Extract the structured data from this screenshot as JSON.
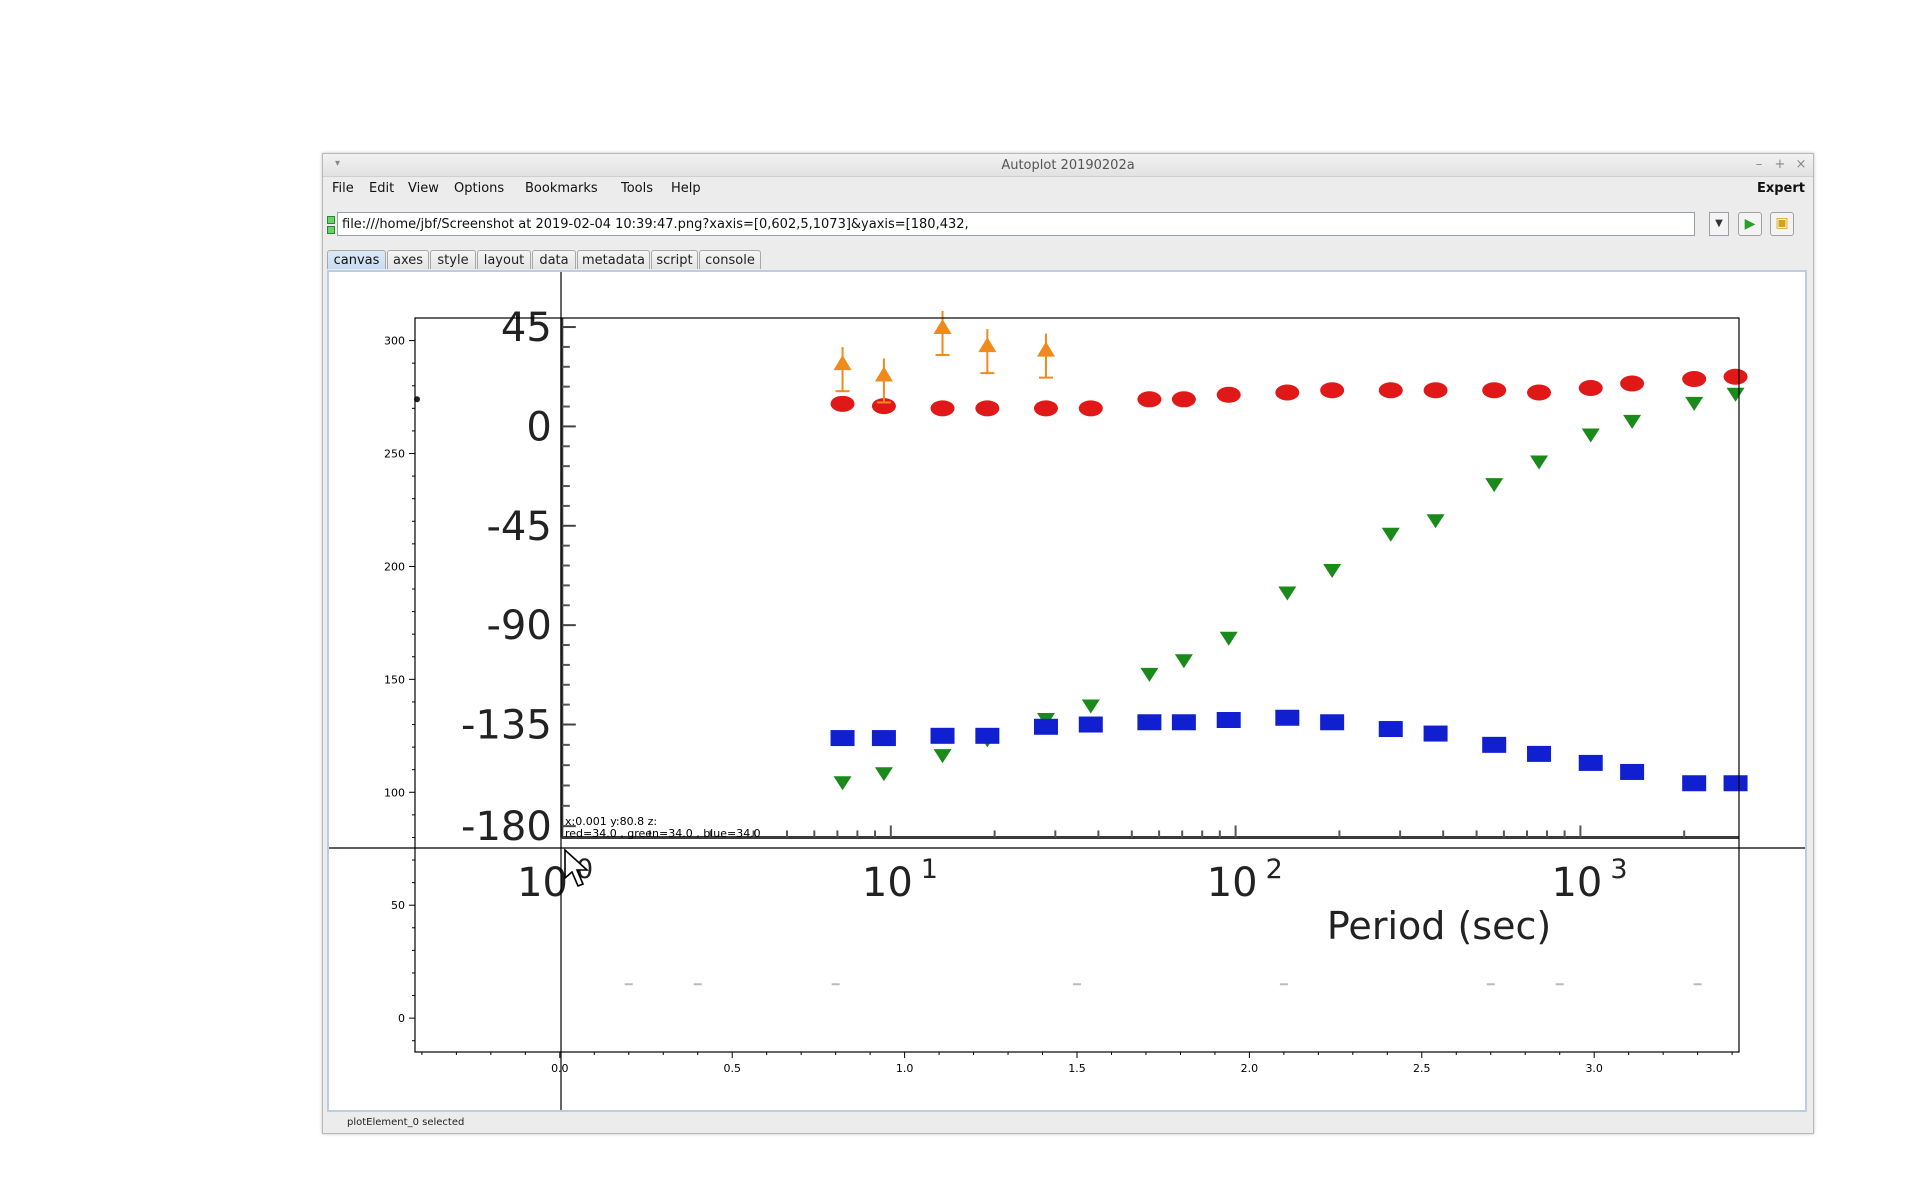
{
  "window": {
    "title": "Autoplot 20190202a",
    "controls": [
      "–",
      "+",
      "×"
    ]
  },
  "menu": {
    "items": [
      "File",
      "Edit",
      "View",
      "Options",
      "Bookmarks",
      "Tools",
      "Help"
    ],
    "expert_label": "Expert"
  },
  "url": {
    "value": "file:///home/jbf/Screenshot at 2019-02-04 10:39:47.png?xaxis=[0,602,5,1073]&yaxis=[180,432,"
  },
  "tabs": [
    "canvas",
    "axes",
    "style",
    "layout",
    "data",
    "metadata",
    "script",
    "console"
  ],
  "active_tab": "canvas",
  "status": {
    "text": "plotElement_0 selected"
  },
  "readout": {
    "line1": "x:0.001  y:80.8  z:",
    "line2": "red=34.0 , green=34.0 , blue=34.0"
  },
  "chart_data": {
    "type": "image",
    "x_ticks": [
      "0.0",
      "0.5",
      "1.0",
      "1.5",
      "2.0",
      "2.5",
      "3.0"
    ],
    "y_ticks": [
      "0",
      "50",
      "100",
      "150",
      "200",
      "250",
      "300"
    ],
    "xlim": [
      -0.42,
      3.42
    ],
    "ylim": [
      -15,
      310
    ],
    "grid": false,
    "embedded_image": {
      "y_labels": [
        "45",
        "0",
        "-45",
        "-90",
        "-135",
        "-180"
      ],
      "x_labels": [
        {
          "base": "10",
          "exp": "0"
        },
        {
          "base": "10",
          "exp": "1"
        },
        {
          "base": "10",
          "exp": "2"
        },
        {
          "base": "10",
          "exp": "3"
        }
      ],
      "xlabel": "Period (sec)",
      "series": [
        {
          "color": "#e01818",
          "marker": "circle",
          "points": [
            [
              0.82,
              272
            ],
            [
              0.94,
              271
            ],
            [
              1.11,
              270
            ],
            [
              1.24,
              270
            ],
            [
              1.41,
              270
            ],
            [
              1.54,
              270
            ],
            [
              1.71,
              274
            ],
            [
              1.81,
              274
            ],
            [
              1.94,
              276
            ],
            [
              2.11,
              277
            ],
            [
              2.24,
              278
            ],
            [
              2.41,
              278
            ],
            [
              2.54,
              278
            ],
            [
              2.71,
              278
            ],
            [
              2.84,
              277
            ],
            [
              2.99,
              279
            ],
            [
              3.11,
              281
            ],
            [
              3.29,
              283
            ],
            [
              3.41,
              284
            ]
          ]
        },
        {
          "color": "#1a8a1a",
          "marker": "triangle-down",
          "points": [
            [
              0.82,
              104
            ],
            [
              0.94,
              108
            ],
            [
              1.11,
              116
            ],
            [
              1.24,
              123
            ],
            [
              1.41,
              132
            ],
            [
              1.54,
              138
            ],
            [
              1.71,
              152
            ],
            [
              1.81,
              158
            ],
            [
              1.94,
              168
            ],
            [
              2.11,
              188
            ],
            [
              2.24,
              198
            ],
            [
              2.41,
              214
            ],
            [
              2.54,
              220
            ],
            [
              2.71,
              236
            ],
            [
              2.84,
              246
            ],
            [
              2.99,
              258
            ],
            [
              3.11,
              264
            ],
            [
              3.29,
              272
            ],
            [
              3.41,
              276
            ]
          ]
        },
        {
          "color": "#1020d0",
          "marker": "square",
          "points": [
            [
              0.82,
              124
            ],
            [
              0.94,
              124
            ],
            [
              1.11,
              125
            ],
            [
              1.24,
              125
            ],
            [
              1.41,
              129
            ],
            [
              1.54,
              130
            ],
            [
              1.71,
              131
            ],
            [
              1.81,
              131
            ],
            [
              1.94,
              132
            ],
            [
              2.11,
              133
            ],
            [
              2.24,
              131
            ],
            [
              2.41,
              128
            ],
            [
              2.54,
              126
            ],
            [
              2.71,
              121
            ],
            [
              2.84,
              117
            ],
            [
              2.99,
              113
            ],
            [
              3.11,
              109
            ],
            [
              3.29,
              104
            ],
            [
              3.41,
              104
            ]
          ]
        },
        {
          "color": "#f08a1a",
          "marker": "triangle-up",
          "error_bars": true,
          "points": [
            [
              0.82,
              290
            ],
            [
              0.94,
              285
            ],
            [
              1.11,
              306
            ],
            [
              1.24,
              298
            ],
            [
              1.41,
              296
            ]
          ]
        }
      ]
    }
  }
}
